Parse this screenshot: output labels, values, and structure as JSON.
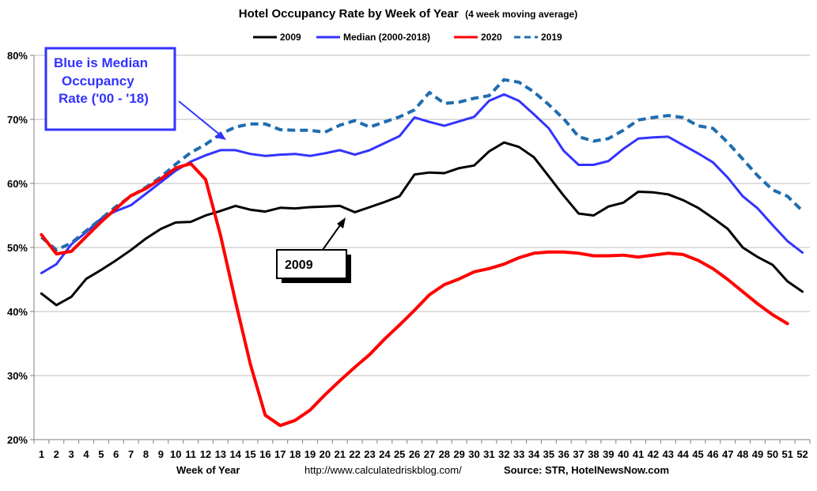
{
  "chart_data": {
    "type": "line",
    "title": "Hotel Occupancy Rate by  Week of Year",
    "subtitle": "(4 week moving average)",
    "xlabel": "Week of Year",
    "ylabel": "",
    "ylim": [
      20,
      80
    ],
    "y_ticks": [
      20,
      30,
      40,
      50,
      60,
      70,
      80
    ],
    "y_tick_labels": [
      "20%",
      "30%",
      "40%",
      "50%",
      "60%",
      "70%",
      "80%"
    ],
    "x": [
      1,
      2,
      3,
      4,
      5,
      6,
      7,
      8,
      9,
      10,
      11,
      12,
      13,
      14,
      15,
      16,
      17,
      18,
      19,
      20,
      21,
      22,
      23,
      24,
      25,
      26,
      27,
      28,
      29,
      30,
      31,
      32,
      33,
      34,
      35,
      36,
      37,
      38,
      39,
      40,
      41,
      42,
      43,
      44,
      45,
      46,
      47,
      48,
      49,
      50,
      51,
      52
    ],
    "x_tick_labels": [
      "1",
      "2",
      "3",
      "4",
      "5",
      "6",
      "7",
      "8",
      "9",
      "10",
      "11",
      "12",
      "13",
      "14",
      "15",
      "16",
      "17",
      "18",
      "19",
      "20",
      "21",
      "22",
      "23",
      "24",
      "25",
      "26",
      "27",
      "28",
      "29",
      "30",
      "31",
      "32",
      "33",
      "34",
      "35",
      "36",
      "37",
      "38",
      "39",
      "40",
      "41",
      "42",
      "43",
      "44",
      "45",
      "46",
      "47",
      "48",
      "49",
      "50",
      "51",
      "52"
    ],
    "grid": "horizontal",
    "legend_position": "top",
    "series": [
      {
        "name": "2009",
        "color": "#000000",
        "dash": "solid",
        "values": [
          42.8,
          41.0,
          42.3,
          45.1,
          46.5,
          48.0,
          49.6,
          51.4,
          52.9,
          53.9,
          54.0,
          55.0,
          55.7,
          56.5,
          55.9,
          55.6,
          56.2,
          56.1,
          56.3,
          56.4,
          56.5,
          55.5,
          56.3,
          57.1,
          58.0,
          61.4,
          61.7,
          61.6,
          62.4,
          62.8,
          65.0,
          66.4,
          65.7,
          64.1,
          61.1,
          58.1,
          55.3,
          55.0,
          56.4,
          57.0,
          58.7,
          58.6,
          58.3,
          57.4,
          56.2,
          54.6,
          52.9,
          50.0,
          48.5,
          47.3,
          44.7,
          43.1
        ]
      },
      {
        "name": "Median (2000-2018)",
        "color": "#3333ff",
        "dash": "solid",
        "values": [
          46.0,
          47.4,
          50.5,
          52.4,
          54.5,
          55.7,
          56.6,
          58.4,
          60.2,
          62.0,
          63.4,
          64.4,
          65.2,
          65.2,
          64.6,
          64.3,
          64.5,
          64.6,
          64.3,
          64.7,
          65.2,
          64.5,
          65.2,
          66.3,
          67.4,
          70.3,
          69.6,
          69.0,
          69.7,
          70.4,
          72.9,
          73.9,
          72.9,
          70.8,
          68.6,
          65.1,
          62.9,
          62.9,
          63.5,
          65.4,
          67.0,
          67.2,
          67.3,
          66.0,
          64.7,
          63.3,
          60.9,
          58.0,
          56.1,
          53.5,
          51.0,
          49.2
        ]
      },
      {
        "name": "2020",
        "color": "#ff0000",
        "dash": "solid",
        "values": [
          52.0,
          49.0,
          49.4,
          51.7,
          54.0,
          56.1,
          58.1,
          59.2,
          60.7,
          62.4,
          63.1,
          60.6,
          51.9,
          41.6,
          31.8,
          23.8,
          22.2,
          23.0,
          24.6,
          27.0,
          29.2,
          31.3,
          33.3,
          35.7,
          37.9,
          40.2,
          42.6,
          44.2,
          45.1,
          46.2,
          46.7,
          47.4,
          48.4,
          49.1,
          49.3,
          49.3,
          49.1,
          48.7,
          48.7,
          48.8,
          48.5,
          48.8,
          49.1,
          48.9,
          48.0,
          46.7,
          45.0,
          43.1,
          41.2,
          39.5,
          38.1,
          null
        ]
      },
      {
        "name": "2019",
        "color": "#1f6db0",
        "dash": "dashed",
        "values": [
          51.6,
          49.6,
          50.7,
          52.6,
          54.5,
          56.4,
          58.0,
          59.4,
          61.0,
          63.0,
          64.8,
          66.1,
          67.7,
          68.8,
          69.3,
          69.3,
          68.4,
          68.3,
          68.3,
          68.0,
          69.1,
          69.8,
          68.8,
          69.6,
          70.4,
          71.5,
          74.2,
          72.5,
          72.7,
          73.3,
          73.7,
          76.2,
          75.8,
          74.3,
          72.3,
          70.1,
          67.3,
          66.6,
          67.0,
          68.3,
          69.9,
          70.3,
          70.6,
          70.3,
          69.0,
          68.6,
          66.4,
          63.8,
          61.2,
          59.0,
          58.0,
          55.7
        ]
      }
    ],
    "annotations": {
      "median_box": {
        "lines": [
          "Blue is Median",
          "Occupancy",
          "Rate ('00 - '18)"
        ],
        "color": "#3333ff"
      },
      "label_2009": {
        "text": "2009",
        "color": "#000000"
      }
    },
    "footer": {
      "url": "http://www.calculatedriskblog.com/",
      "source": "Source: STR, HotelNewsNow.com"
    }
  }
}
